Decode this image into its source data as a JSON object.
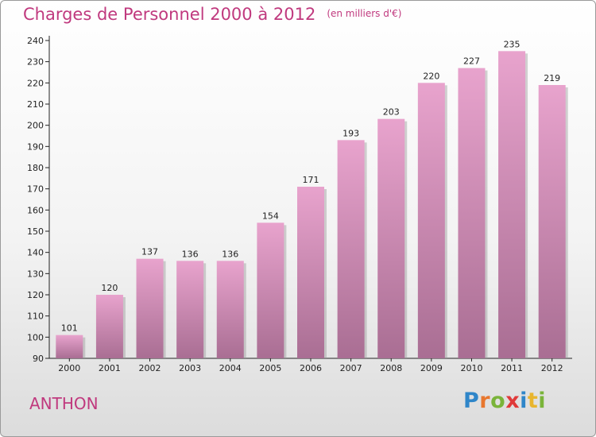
{
  "chart_data": {
    "type": "bar",
    "title": "Charges de Personnel 2000 à 2012",
    "subtitle": "(en milliers d'€)",
    "categories": [
      "2000",
      "2001",
      "2002",
      "2003",
      "2004",
      "2005",
      "2006",
      "2007",
      "2008",
      "2009",
      "2010",
      "2011",
      "2012"
    ],
    "values": [
      101,
      120,
      137,
      136,
      136,
      154,
      171,
      193,
      203,
      220,
      227,
      235,
      219
    ],
    "ylim": [
      90,
      240
    ],
    "yticks": [
      90,
      100,
      110,
      120,
      130,
      140,
      150,
      160,
      170,
      180,
      190,
      200,
      210,
      220,
      230,
      240
    ],
    "xlabel": "",
    "ylabel": "",
    "grid": false
  },
  "footer": {
    "commune": "ANTHON",
    "logo_letters": [
      "P",
      "r",
      "o",
      "x",
      "i",
      "t",
      "i"
    ]
  },
  "colors": {
    "accent": "#c0397e",
    "bar_top": "#e8a3cd",
    "bar_bottom": "#a96e93",
    "logo": [
      "#2f86c9",
      "#e8772e",
      "#7ab43a",
      "#e03a3a",
      "#2f86c9",
      "#e8b52e",
      "#7ab43a"
    ]
  }
}
